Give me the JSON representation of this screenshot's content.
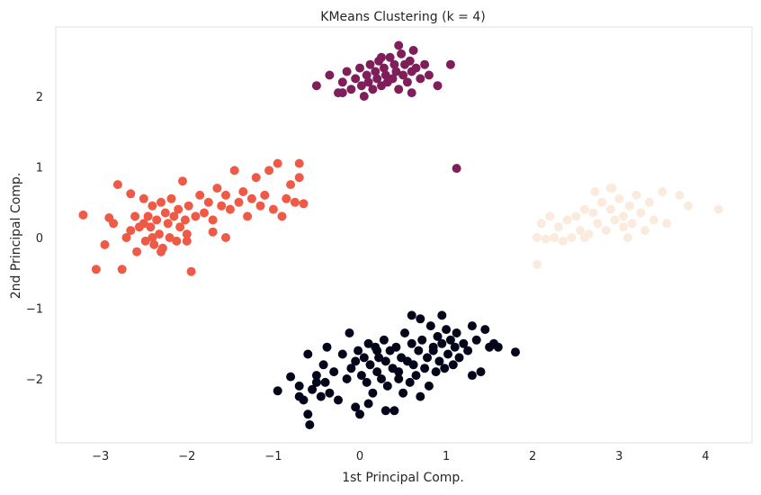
{
  "chart_data": {
    "type": "scatter",
    "title": "KMeans Clustering (k = 4)",
    "xlabel": "1st Principal Comp.",
    "ylabel": "2nd Principal Comp.",
    "xlim": [
      -3.5,
      4.5
    ],
    "ylim": [
      -2.95,
      3.0
    ],
    "xticks": [
      -3,
      -2,
      -1,
      0,
      1,
      2,
      3,
      4
    ],
    "yticks": [
      -2,
      -1,
      0,
      1,
      2
    ],
    "xtick_labels": [
      "−3",
      "−2",
      "−1",
      "0",
      "1",
      "2",
      "3",
      "4"
    ],
    "ytick_labels": [
      "−2",
      "−1",
      "0",
      "1",
      "2"
    ],
    "grid": false,
    "legend": "none",
    "series": [
      {
        "cluster": 0,
        "color": "#03051a",
        "points": [
          [
            -0.95,
            -2.17
          ],
          [
            -0.8,
            -1.97
          ],
          [
            -0.7,
            -2.1
          ],
          [
            -0.65,
            -2.3
          ],
          [
            -0.6,
            -1.65
          ],
          [
            -0.6,
            -2.5
          ],
          [
            -0.58,
            -2.65
          ],
          [
            -0.55,
            -2.15
          ],
          [
            -0.5,
            -1.95
          ],
          [
            -0.45,
            -2.25
          ],
          [
            -0.42,
            -1.8
          ],
          [
            -0.4,
            -2.05
          ],
          [
            -0.38,
            -1.55
          ],
          [
            -0.35,
            -2.2
          ],
          [
            -0.3,
            -1.9
          ],
          [
            -0.25,
            -2.3
          ],
          [
            -0.2,
            -1.65
          ],
          [
            -0.15,
            -2.0
          ],
          [
            -0.12,
            -1.35
          ],
          [
            -0.1,
            -1.85
          ],
          [
            -0.05,
            -2.4
          ],
          [
            -0.02,
            -1.6
          ],
          [
            0.0,
            -2.5
          ],
          [
            0.02,
            -1.95
          ],
          [
            0.05,
            -1.7
          ],
          [
            0.08,
            -2.05
          ],
          [
            0.1,
            -1.5
          ],
          [
            0.12,
            -1.8
          ],
          [
            0.15,
            -2.2
          ],
          [
            0.18,
            -1.55
          ],
          [
            0.2,
            -1.9
          ],
          [
            0.22,
            -1.7
          ],
          [
            0.25,
            -2.0
          ],
          [
            0.28,
            -1.45
          ],
          [
            0.3,
            -1.75
          ],
          [
            0.32,
            -2.1
          ],
          [
            0.35,
            -1.6
          ],
          [
            0.38,
            -1.85
          ],
          [
            0.4,
            -2.45
          ],
          [
            0.42,
            -1.55
          ],
          [
            0.45,
            -1.9
          ],
          [
            0.48,
            -1.7
          ],
          [
            0.5,
            -2.2
          ],
          [
            0.52,
            -1.35
          ],
          [
            0.55,
            -1.75
          ],
          [
            0.58,
            -2.05
          ],
          [
            0.6,
            -1.5
          ],
          [
            0.62,
            -1.8
          ],
          [
            0.65,
            -1.95
          ],
          [
            0.68,
            -1.6
          ],
          [
            0.7,
            -2.25
          ],
          [
            0.72,
            -1.45
          ],
          [
            0.75,
            -1.85
          ],
          [
            0.78,
            -1.7
          ],
          [
            0.8,
            -2.1
          ],
          [
            0.82,
            -1.25
          ],
          [
            0.85,
            -1.55
          ],
          [
            0.88,
            -1.9
          ],
          [
            0.9,
            -1.4
          ],
          [
            0.92,
            -1.75
          ],
          [
            0.95,
            -1.5
          ],
          [
            0.98,
            -1.85
          ],
          [
            1.0,
            -1.3
          ],
          [
            1.02,
            -1.65
          ],
          [
            1.05,
            -1.45
          ],
          [
            1.08,
            -1.8
          ],
          [
            1.1,
            -1.55
          ],
          [
            1.12,
            -1.35
          ],
          [
            1.15,
            -1.7
          ],
          [
            1.2,
            -1.5
          ],
          [
            1.25,
            -1.6
          ],
          [
            1.3,
            -1.25
          ],
          [
            1.35,
            -1.45
          ],
          [
            1.4,
            -1.9
          ],
          [
            1.45,
            -1.3
          ],
          [
            1.5,
            -1.55
          ],
          [
            1.55,
            -1.5
          ],
          [
            1.6,
            -1.55
          ],
          [
            0.1,
            -2.35
          ],
          [
            0.3,
            -2.45
          ],
          [
            -0.5,
            -2.05
          ],
          [
            -0.7,
            -2.25
          ],
          [
            0.6,
            -1.1
          ],
          [
            0.7,
            -1.15
          ],
          [
            0.95,
            -1.1
          ],
          [
            0.2,
            -1.6
          ],
          [
            -0.05,
            -1.75
          ],
          [
            0.45,
            -2.0
          ],
          [
            1.8,
            -1.62
          ],
          [
            1.3,
            -1.95
          ],
          [
            0.85,
            -1.6
          ]
        ]
      },
      {
        "cluster": 1,
        "color": "#7f1e5a",
        "points": [
          [
            -0.5,
            2.15
          ],
          [
            -0.35,
            2.3
          ],
          [
            -0.25,
            2.05
          ],
          [
            -0.2,
            2.2
          ],
          [
            -0.15,
            2.35
          ],
          [
            -0.1,
            2.1
          ],
          [
            -0.05,
            2.25
          ],
          [
            0.0,
            2.4
          ],
          [
            0.02,
            2.15
          ],
          [
            0.05,
            2.0
          ],
          [
            0.08,
            2.3
          ],
          [
            0.1,
            2.2
          ],
          [
            0.12,
            2.45
          ],
          [
            0.15,
            2.1
          ],
          [
            0.18,
            2.35
          ],
          [
            0.2,
            2.25
          ],
          [
            0.22,
            2.5
          ],
          [
            0.25,
            2.15
          ],
          [
            0.28,
            2.4
          ],
          [
            0.3,
            2.3
          ],
          [
            0.32,
            2.2
          ],
          [
            0.35,
            2.55
          ],
          [
            0.38,
            2.25
          ],
          [
            0.4,
            2.45
          ],
          [
            0.42,
            2.35
          ],
          [
            0.45,
            2.1
          ],
          [
            0.48,
            2.6
          ],
          [
            0.5,
            2.3
          ],
          [
            0.52,
            2.45
          ],
          [
            0.55,
            2.2
          ],
          [
            0.58,
            2.5
          ],
          [
            0.6,
            2.35
          ],
          [
            0.62,
            2.65
          ],
          [
            0.65,
            2.4
          ],
          [
            0.7,
            2.25
          ],
          [
            0.75,
            2.45
          ],
          [
            0.8,
            2.3
          ],
          [
            0.9,
            2.15
          ],
          [
            1.05,
            2.45
          ],
          [
            0.45,
            2.72
          ],
          [
            0.6,
            2.05
          ],
          [
            -0.2,
            2.05
          ],
          [
            0.25,
            2.55
          ],
          [
            1.12,
            0.98
          ]
        ]
      },
      {
        "cluster": 2,
        "color": "#ee5a45",
        "points": [
          [
            -3.2,
            0.32
          ],
          [
            -3.05,
            -0.45
          ],
          [
            -2.95,
            -0.1
          ],
          [
            -2.9,
            0.28
          ],
          [
            -2.85,
            0.2
          ],
          [
            -2.8,
            0.75
          ],
          [
            -2.75,
            -0.45
          ],
          [
            -2.7,
            0.0
          ],
          [
            -2.65,
            0.62
          ],
          [
            -2.6,
            0.3
          ],
          [
            -2.58,
            -0.2
          ],
          [
            -2.55,
            0.15
          ],
          [
            -2.5,
            0.55
          ],
          [
            -2.48,
            -0.05
          ],
          [
            -2.45,
            0.3
          ],
          [
            -2.42,
            0.15
          ],
          [
            -2.4,
            0.45
          ],
          [
            -2.38,
            -0.1
          ],
          [
            -2.35,
            0.25
          ],
          [
            -2.32,
            0.05
          ],
          [
            -2.3,
            0.5
          ],
          [
            -2.28,
            -0.15
          ],
          [
            -2.25,
            0.35
          ],
          [
            -2.22,
            0.2
          ],
          [
            -2.2,
            0.0
          ],
          [
            -2.18,
            0.55
          ],
          [
            -2.15,
            0.3
          ],
          [
            -2.12,
            -0.05
          ],
          [
            -2.1,
            0.4
          ],
          [
            -2.08,
            0.15
          ],
          [
            -2.05,
            0.8
          ],
          [
            -2.02,
            0.25
          ],
          [
            -2.0,
            0.05
          ],
          [
            -1.98,
            0.45
          ],
          [
            -1.95,
            -0.48
          ],
          [
            -1.9,
            0.3
          ],
          [
            -1.85,
            0.6
          ],
          [
            -1.8,
            0.35
          ],
          [
            -1.75,
            0.5
          ],
          [
            -1.7,
            0.25
          ],
          [
            -1.65,
            0.7
          ],
          [
            -1.6,
            0.45
          ],
          [
            -1.55,
            0.6
          ],
          [
            -1.5,
            0.4
          ],
          [
            -1.45,
            0.95
          ],
          [
            -1.4,
            0.5
          ],
          [
            -1.35,
            0.65
          ],
          [
            -1.3,
            0.3
          ],
          [
            -1.25,
            0.55
          ],
          [
            -1.2,
            0.85
          ],
          [
            -1.15,
            0.45
          ],
          [
            -1.1,
            0.6
          ],
          [
            -1.05,
            0.95
          ],
          [
            -1.0,
            0.4
          ],
          [
            -0.95,
            1.05
          ],
          [
            -0.9,
            0.3
          ],
          [
            -0.85,
            0.55
          ],
          [
            -0.8,
            0.75
          ],
          [
            -0.75,
            0.5
          ],
          [
            -0.7,
            0.85
          ],
          [
            -0.7,
            1.05
          ],
          [
            -0.65,
            0.48
          ],
          [
            -2.65,
            0.1
          ],
          [
            -2.3,
            -0.2
          ],
          [
            -1.7,
            0.08
          ],
          [
            -2.0,
            -0.05
          ],
          [
            -1.55,
            0.0
          ],
          [
            -2.5,
            0.2
          ],
          [
            -2.4,
            0.0
          ]
        ]
      },
      {
        "cluster": 3,
        "color": "#faebdd",
        "points": [
          [
            2.05,
            -0.38
          ],
          [
            2.05,
            0.0
          ],
          [
            2.1,
            0.2
          ],
          [
            2.15,
            -0.02
          ],
          [
            2.2,
            0.3
          ],
          [
            2.25,
            0.0
          ],
          [
            2.3,
            0.15
          ],
          [
            2.35,
            -0.05
          ],
          [
            2.4,
            0.25
          ],
          [
            2.45,
            0.0
          ],
          [
            2.5,
            0.3
          ],
          [
            2.55,
            0.1
          ],
          [
            2.6,
            0.4
          ],
          [
            2.65,
            0.05
          ],
          [
            2.7,
            0.35
          ],
          [
            2.72,
            0.65
          ],
          [
            2.75,
            0.2
          ],
          [
            2.8,
            0.5
          ],
          [
            2.85,
            0.1
          ],
          [
            2.9,
            0.4
          ],
          [
            2.92,
            0.7
          ],
          [
            2.95,
            0.25
          ],
          [
            3.0,
            0.55
          ],
          [
            3.05,
            0.3
          ],
          [
            3.1,
            0.0
          ],
          [
            3.12,
            0.45
          ],
          [
            3.15,
            0.2
          ],
          [
            3.2,
            0.6
          ],
          [
            3.25,
            0.35
          ],
          [
            3.3,
            0.1
          ],
          [
            3.35,
            0.5
          ],
          [
            3.4,
            0.25
          ],
          [
            3.5,
            0.65
          ],
          [
            3.55,
            0.2
          ],
          [
            3.7,
            0.6
          ],
          [
            3.8,
            0.45
          ],
          [
            4.15,
            0.4
          ],
          [
            2.9,
            0.7
          ],
          [
            3.05,
            0.15
          ],
          [
            2.6,
            0.0
          ]
        ]
      }
    ]
  }
}
